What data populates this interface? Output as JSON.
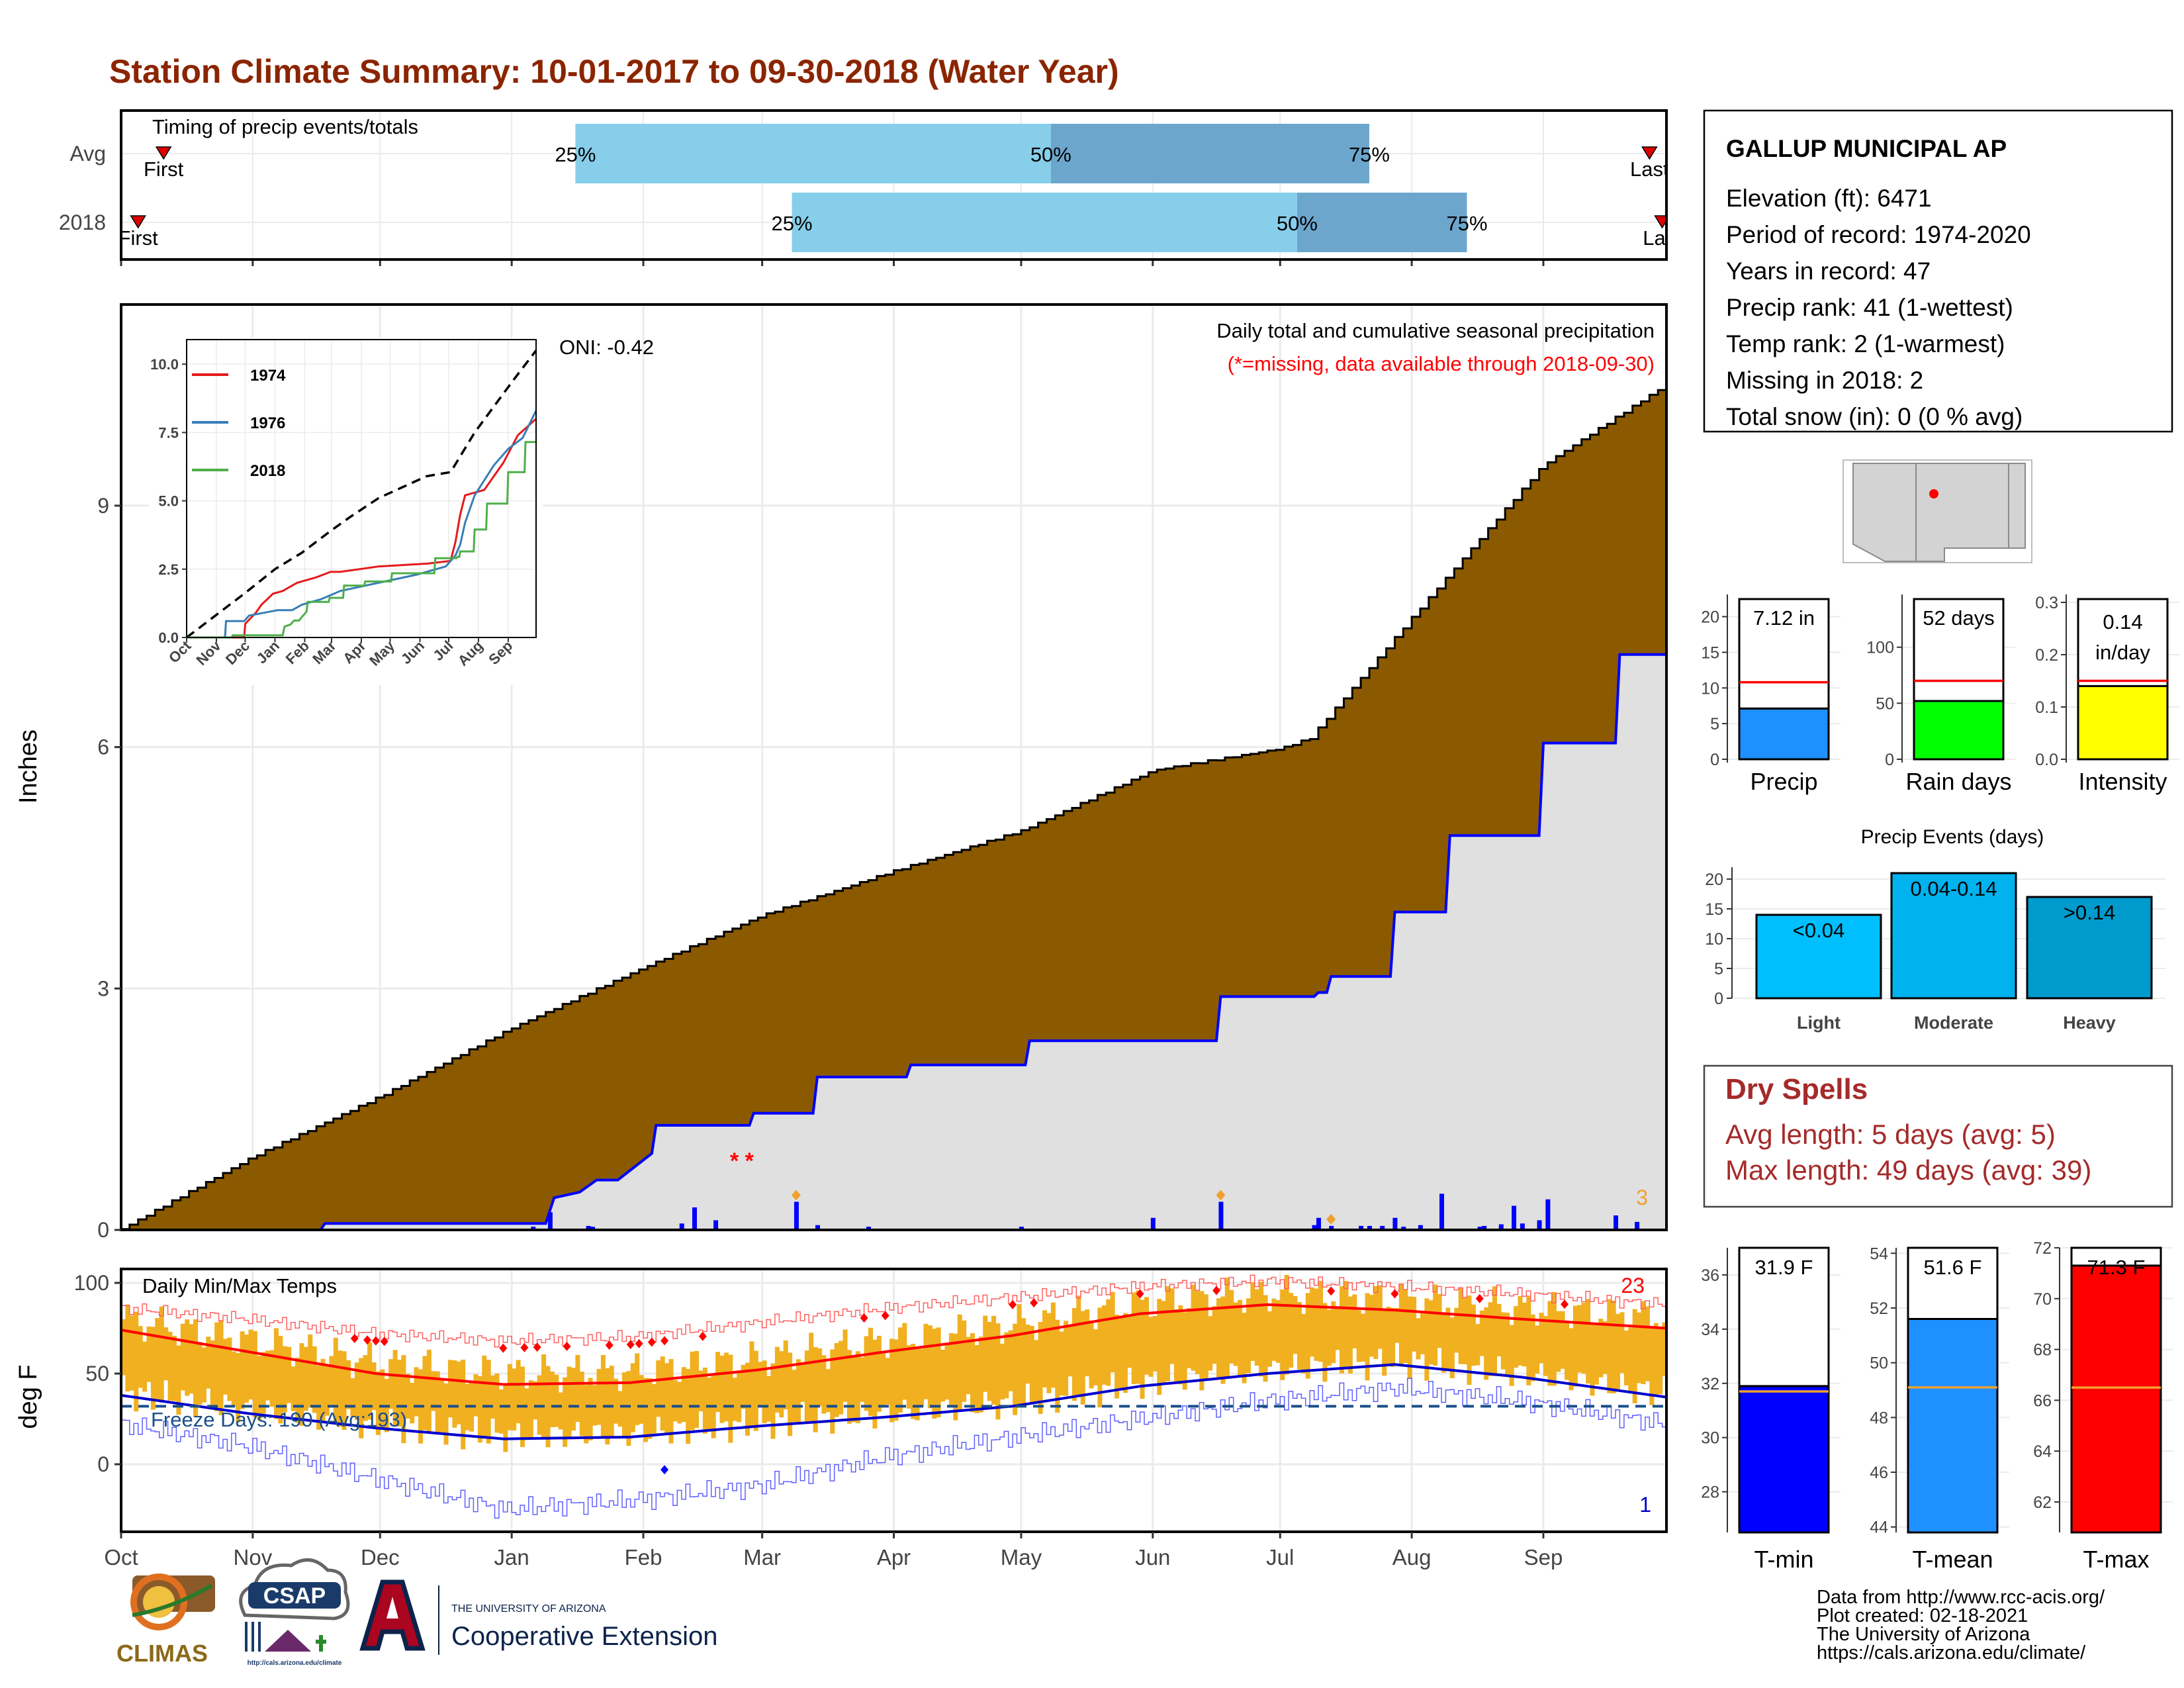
{
  "title": "Station Climate Summary: 10-01-2017 to 09-30-2018 (Water Year)",
  "colors": {
    "title": "#8b2500",
    "cum_avg_fill": "#8b5a00",
    "cum_2018_fill": "#e0e0e0",
    "cum_2018_line": "#0000ff",
    "daily_bar": "#0000ff",
    "timing_light": "#87ceeb",
    "timing_dark": "#6ca6cd",
    "temp_bar": "#f0b020",
    "tmax_line": "#ff0000",
    "tmin_line": "#0000cd",
    "dryspell_text": "#a52a2a",
    "precip_bar": "#1e90ff",
    "raindays_bar": "#00ff00",
    "intensity_bar": "#ffff00",
    "events_light": "#00bfff",
    "events_moderate": "#00b2ee",
    "events_heavy": "#009acd",
    "tmin_bar": "#0000ff",
    "tmean_bar": "#1e90ff",
    "tmax_bar": "#ff0000",
    "avg_line_orange": "#f0a030"
  },
  "timing": {
    "label": "Timing of precip events/totals",
    "rows": [
      {
        "label": "Avg",
        "first_label": "First",
        "last_label": "Last",
        "first_doy": 10,
        "last_doy": 360,
        "p25": 107,
        "p50": 219,
        "p75": 294,
        "p25_label": "25%",
        "p50_label": "50%",
        "p75_label": "75%"
      },
      {
        "label": "2018",
        "first_label": "First",
        "last_label": "Last",
        "first_doy": 4,
        "last_doy": 363,
        "p25": 158,
        "p50": 277,
        "p75": 317,
        "p25_label": "25%",
        "p50_label": "50%",
        "p75_label": "75%"
      }
    ]
  },
  "months": [
    "Oct",
    "Nov",
    "Dec",
    "Jan",
    "Feb",
    "Mar",
    "Apr",
    "May",
    "Jun",
    "Jul",
    "Aug",
    "Sep"
  ],
  "month_start_doy": [
    0,
    31,
    61,
    92,
    123,
    151,
    182,
    212,
    243,
    273,
    304,
    335
  ],
  "precip_panel": {
    "ylabel": "Inches",
    "yticks": [
      0,
      3,
      6,
      9
    ],
    "ylim": [
      0,
      11.5
    ],
    "title": "Daily total and cumulative seasonal precipitation",
    "subtitle": "(*=missing, data available through 2018-09-30)",
    "oni_label": "ONI: -0.42",
    "missing_marker": "* *",
    "count_label": "3",
    "avg_cumulative": {
      "doy": [
        0,
        31,
        61,
        92,
        123,
        151,
        182,
        212,
        243,
        273,
        280,
        304,
        335,
        364
      ],
      "value": [
        0,
        0.9,
        1.65,
        2.5,
        3.25,
        3.9,
        4.45,
        4.95,
        5.7,
        5.97,
        6.1,
        7.6,
        9.5,
        10.5
      ]
    },
    "cum_2018": {
      "doy": [
        0,
        47,
        48,
        100,
        102,
        108,
        112,
        117,
        125,
        126,
        148,
        149,
        163,
        164,
        185,
        186,
        213,
        214,
        258,
        259,
        281,
        282,
        284,
        285,
        299,
        300,
        312,
        313,
        334,
        335,
        352,
        353,
        364
      ],
      "value": [
        0,
        0,
        0.08,
        0.08,
        0.4,
        0.47,
        0.62,
        0.62,
        0.95,
        1.3,
        1.3,
        1.45,
        1.45,
        1.9,
        1.9,
        2.05,
        2.05,
        2.35,
        2.35,
        2.9,
        2.9,
        2.95,
        2.95,
        3.15,
        3.15,
        3.95,
        3.95,
        4.9,
        4.9,
        6.05,
        6.05,
        7.15,
        7.15
      ]
    },
    "daily": {
      "doy": [
        97,
        101,
        110,
        111,
        132,
        135,
        140,
        159,
        164,
        176,
        212,
        243,
        259,
        281,
        282,
        285,
        292,
        294,
        297,
        300,
        302,
        306,
        311,
        320,
        321,
        325,
        328,
        330,
        334,
        336,
        352,
        357
      ],
      "value": [
        0.04,
        0.22,
        0.05,
        0.04,
        0.08,
        0.28,
        0.12,
        0.35,
        0.06,
        0.04,
        0.04,
        0.15,
        0.35,
        0.06,
        0.15,
        0.05,
        0.05,
        0.05,
        0.05,
        0.15,
        0.04,
        0.06,
        0.45,
        0.04,
        0.05,
        0.07,
        0.3,
        0.08,
        0.12,
        0.38,
        0.18,
        0.1
      ]
    },
    "event_markers_doy": [
      159,
      259,
      285
    ]
  },
  "inset": {
    "xlabels": [
      "Oct",
      "Nov",
      "Dec",
      "Jan",
      "Feb",
      "Mar",
      "Apr",
      "May",
      "Jun",
      "Jul",
      "Aug",
      "Sep"
    ],
    "yticks": [
      "0.0",
      "2.5",
      "5.0",
      "7.5",
      "10.0"
    ],
    "legend": [
      {
        "name": "1974",
        "color": "#e41a1c"
      },
      {
        "name": "1976",
        "color": "#377eb8"
      },
      {
        "name": "2018",
        "color": "#4daf4a"
      }
    ],
    "avg": {
      "doy": [
        0,
        60,
        92,
        120,
        150,
        170,
        200,
        250,
        275,
        300,
        340,
        364
      ],
      "value": [
        0,
        1.6,
        2.5,
        3.1,
        3.9,
        4.4,
        5.1,
        5.9,
        6.05,
        7.5,
        9.4,
        10.5
      ]
    },
    "s1974": {
      "doy": [
        0,
        60,
        61,
        72,
        78,
        90,
        100,
        115,
        125,
        135,
        150,
        160,
        180,
        200,
        250,
        275,
        280,
        285,
        290,
        300,
        310,
        320,
        330,
        345,
        364
      ],
      "value": [
        0,
        0,
        0.5,
        0.9,
        1.2,
        1.6,
        1.7,
        2.0,
        2.1,
        2.2,
        2.4,
        2.4,
        2.5,
        2.6,
        2.7,
        2.8,
        3.5,
        4.5,
        5.2,
        5.3,
        5.4,
        5.9,
        6.4,
        7.4,
        8.0
      ]
    },
    "s1976": {
      "doy": [
        0,
        40,
        41,
        60,
        65,
        80,
        95,
        110,
        120,
        140,
        160,
        200,
        240,
        270,
        280,
        285,
        290,
        300,
        320,
        335,
        350,
        364
      ],
      "value": [
        0,
        0,
        0.6,
        0.6,
        0.8,
        0.9,
        1.0,
        1.0,
        1.2,
        1.4,
        1.7,
        2.0,
        2.3,
        2.6,
        3.0,
        3.4,
        4.2,
        5.2,
        6.3,
        6.9,
        7.3,
        8.3
      ]
    },
    "s2018": {
      "doy": [
        0,
        47,
        48,
        100,
        102,
        108,
        112,
        117,
        125,
        126,
        148,
        149,
        163,
        164,
        185,
        186,
        213,
        214,
        258,
        259,
        281,
        282,
        284,
        285,
        299,
        300,
        312,
        313,
        334,
        335,
        352,
        353,
        364
      ],
      "value": [
        0,
        0,
        0.08,
        0.08,
        0.4,
        0.47,
        0.62,
        0.62,
        0.95,
        1.3,
        1.3,
        1.45,
        1.45,
        1.9,
        1.9,
        2.05,
        2.05,
        2.35,
        2.35,
        2.9,
        2.9,
        2.95,
        2.95,
        3.15,
        3.15,
        3.95,
        3.95,
        4.9,
        4.9,
        6.05,
        6.05,
        7.15,
        7.15
      ]
    }
  },
  "temp_panel": {
    "ylabel": "deg F",
    "yticks": [
      0,
      50,
      100
    ],
    "title": "Daily Min/Max Temps",
    "freeze_label": "Freeze Days: 190 (Avg:193)",
    "freeze_line": 32,
    "record_high_count": "23",
    "record_low_count": "1",
    "tmax_avg": {
      "doy": [
        0,
        30,
        60,
        90,
        120,
        150,
        180,
        210,
        240,
        270,
        300,
        330,
        364
      ],
      "value": [
        74,
        62,
        50,
        44,
        45,
        52,
        62,
        71,
        83,
        88,
        85,
        80,
        75
      ]
    },
    "tmin_avg": {
      "doy": [
        0,
        30,
        60,
        90,
        120,
        150,
        180,
        210,
        240,
        270,
        300,
        330,
        364
      ],
      "value": [
        38,
        28,
        20,
        14,
        15,
        21,
        26,
        32,
        43,
        50,
        55,
        48,
        37
      ]
    },
    "tmax_record": {
      "doy": [
        0,
        30,
        60,
        90,
        120,
        150,
        180,
        210,
        240,
        270,
        300,
        330,
        364
      ],
      "value": [
        86,
        80,
        72,
        68,
        70,
        78,
        86,
        92,
        98,
        101,
        98,
        94,
        88
      ]
    },
    "tmin_record": {
      "doy": [
        0,
        30,
        60,
        90,
        120,
        150,
        180,
        210,
        240,
        270,
        300,
        330,
        364
      ],
      "value": [
        22,
        10,
        -8,
        -25,
        -20,
        -12,
        4,
        15,
        25,
        35,
        42,
        35,
        22
      ]
    }
  },
  "station": {
    "name": "GALLUP MUNICIPAL AP",
    "lines": [
      "Elevation (ft): 6471",
      "Period of record: 1974-2020",
      "Years in record: 47",
      "Precip rank: 41 (1-wettest)",
      "Temp rank: 2 (1-warmest)",
      "Missing in 2018: 2",
      "Total snow (in): 0 (0 % avg)"
    ]
  },
  "summary_bars": [
    {
      "label": "Precip",
      "value_label": "7.12 in",
      "value": 7.12,
      "avg": 10.8,
      "yticks": [
        "0",
        "5",
        "10",
        "15",
        "20"
      ],
      "ymax": 22,
      "color": "#1e90ff"
    },
    {
      "label": "Rain days",
      "value_label": "52 days",
      "value": 52,
      "avg": 70,
      "yticks": [
        "0",
        "50",
        "100"
      ],
      "ymax": 140,
      "color": "#00ff00"
    },
    {
      "label": "Intensity",
      "value_label": "0.14 in/day",
      "value": 0.14,
      "avg": 0.15,
      "yticks": [
        "0.0",
        "0.1",
        "0.2",
        "0.3"
      ],
      "ymax": 0.3,
      "color": "#ffff00"
    }
  ],
  "precip_events": {
    "title": "Precip Events (days)",
    "yticks": [
      "0",
      "5",
      "10",
      "15",
      "20"
    ],
    "categories": [
      {
        "label": "Light",
        "bar_label": "<0.04",
        "value": 14
      },
      {
        "label": "Moderate",
        "bar_label": "0.04-0.14",
        "value": 21
      },
      {
        "label": "Heavy",
        "bar_label": ">0.14",
        "value": 17
      }
    ]
  },
  "dry_spells": {
    "title": "Dry Spells",
    "avg_length": "Avg length: 5 days (avg: 5)",
    "max_length": "Max length: 49 days (avg: 39)"
  },
  "temp_bars": [
    {
      "label": "T-min",
      "value_label": "31.9 F",
      "value": 31.9,
      "avg": 31.7,
      "ymin": 26.5,
      "ymax": 37,
      "yticks": [
        "28",
        "30",
        "32",
        "34",
        "36"
      ],
      "color": "#0000ff"
    },
    {
      "label": "T-mean",
      "value_label": "51.6 F",
      "value": 51.6,
      "avg": 49.1,
      "ymin": 43.8,
      "ymax": 54.2,
      "yticks": [
        "44",
        "46",
        "48",
        "50",
        "52",
        "54"
      ],
      "color": "#1e90ff"
    },
    {
      "label": "T-max",
      "value_label": "71.3 F",
      "value": 71.3,
      "avg": 66.5,
      "ymin": 60.8,
      "ymax": 72,
      "yticks": [
        "62",
        "64",
        "66",
        "68",
        "70",
        "72"
      ],
      "color": "#ff0000"
    }
  ],
  "footer": {
    "lines": [
      "Data from http://www.rcc-acis.org/",
      "Plot created: 02-18-2021",
      "The University of Arizona",
      "https://cals.arizona.edu/climate/"
    ],
    "logos": {
      "climas": "CLIMAS",
      "csap": "CSAP",
      "csap_url": "http://cals.arizona.edu/climate",
      "ua_small": "THE UNIVERSITY OF ARIZONA",
      "ua_big": "Cooperative Extension"
    }
  }
}
